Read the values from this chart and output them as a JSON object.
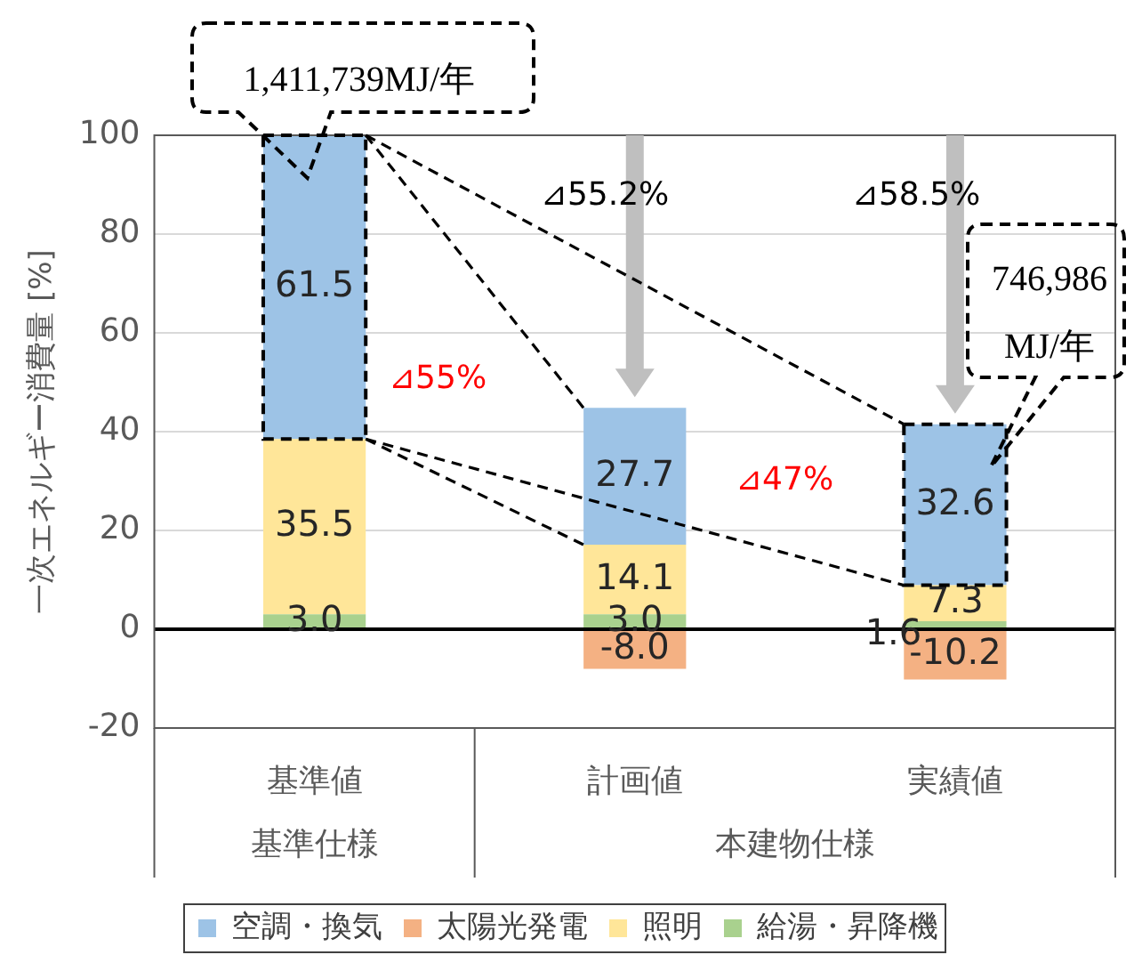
{
  "chart_data": {
    "type": "bar",
    "stacked": true,
    "categories": [
      "基準値",
      "計画値",
      "実績値"
    ],
    "series": [
      {
        "name": "給湯・昇降機",
        "color": "#a9d18e",
        "values": [
          3.0,
          3.0,
          1.6
        ],
        "value_labels": [
          "3.0",
          "3.0",
          "1.6"
        ]
      },
      {
        "name": "照明",
        "color": "#ffe699",
        "values": [
          35.5,
          14.1,
          7.3
        ],
        "value_labels": [
          "35.5",
          "14.1",
          "7.3"
        ]
      },
      {
        "name": "太陽光発電",
        "color": "#f4b183",
        "values": [
          null,
          -8.0,
          -10.2
        ],
        "value_labels": [
          null,
          "-8.0",
          "-10.2"
        ]
      },
      {
        "name": "空調・換気",
        "color": "#9dc3e6",
        "values": [
          61.5,
          27.7,
          32.6
        ],
        "value_labels": [
          "61.5",
          "27.7",
          "32.6"
        ]
      }
    ],
    "ylabel": "一次エネルギー消費量 [%]",
    "ylim": [
      -20,
      100
    ],
    "yticks": [
      -20,
      0,
      20,
      40,
      60,
      80,
      100
    ],
    "grid": "y",
    "legend": "bottom",
    "ref_lines": [
      {
        "axis": "y",
        "value": 0,
        "color": "#000000"
      }
    ],
    "annotations": [
      {
        "text": "1,411,739MJ/年",
        "x": "基準値",
        "y": 100
      },
      {
        "text": "746,986 MJ/年",
        "x": "実績値",
        "y": 41.5
      },
      "⊿55.2%",
      "⊿58.5%",
      "⊿55%",
      "⊿47%",
      "基準仕様",
      "本建物仕様"
    ]
  }
}
